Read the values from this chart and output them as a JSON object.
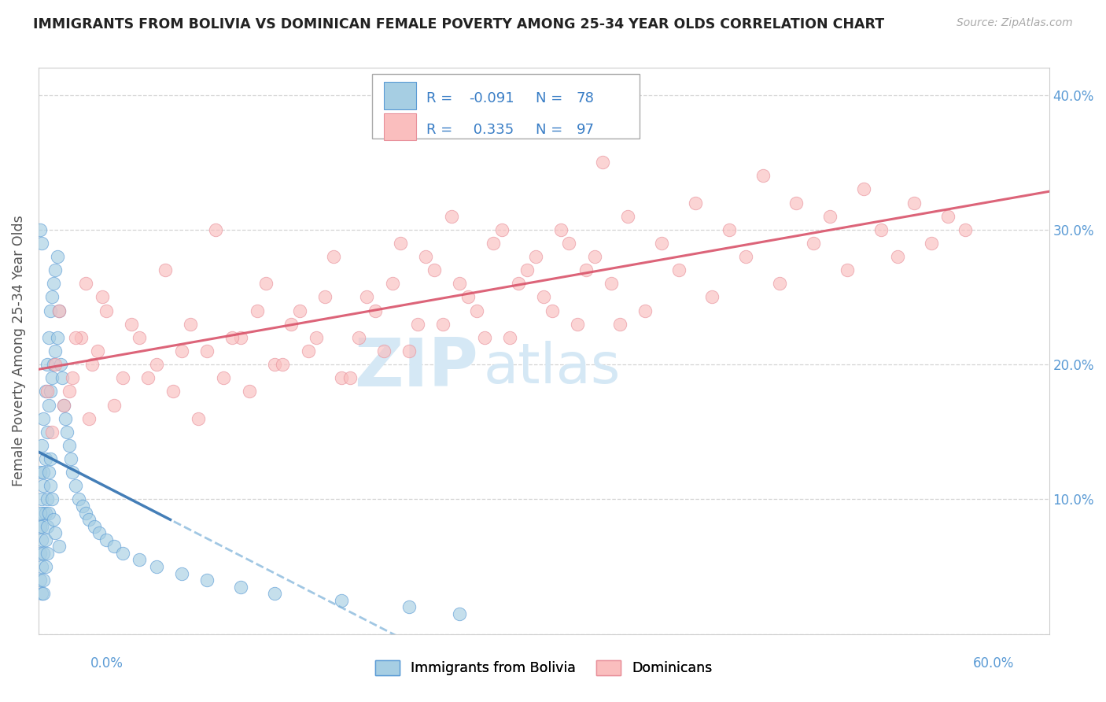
{
  "title": "IMMIGRANTS FROM BOLIVIA VS DOMINICAN FEMALE POVERTY AMONG 25-34 YEAR OLDS CORRELATION CHART",
  "source": "Source: ZipAtlas.com",
  "ylabel": "Female Poverty Among 25-34 Year Olds",
  "ytick_vals": [
    0.0,
    0.1,
    0.2,
    0.3,
    0.4
  ],
  "ytick_labels": [
    "",
    "10.0%",
    "20.0%",
    "30.0%",
    "40.0%"
  ],
  "xlim": [
    0.0,
    0.6
  ],
  "ylim": [
    0.0,
    0.42
  ],
  "r_bolivia": -0.091,
  "n_bolivia": 78,
  "r_dominican": 0.335,
  "n_dominican": 97,
  "color_blue_fill": "#a6cee3",
  "color_blue_edge": "#5b9bd5",
  "color_pink_fill": "#fabebe",
  "color_pink_edge": "#e8909a",
  "color_trend_blue_solid": "#3070b0",
  "color_trend_blue_dash": "#7ab0d8",
  "color_trend_pink": "#d9536a",
  "color_legend_text": "#3a7ec6",
  "color_legend_r_blue": "#3a7ec6",
  "color_legend_n_blue": "#3a7ec6",
  "watermark_color": "#d5e8f5",
  "background_color": "#ffffff",
  "grid_color": "#d0d0d0",
  "axis_label_color": "#5b9bd5",
  "ylabel_color": "#555555",
  "title_color": "#222222",
  "bolivia_x": [
    0.001,
    0.001,
    0.001,
    0.001,
    0.002,
    0.002,
    0.002,
    0.002,
    0.002,
    0.003,
    0.003,
    0.003,
    0.003,
    0.003,
    0.004,
    0.004,
    0.004,
    0.004,
    0.005,
    0.005,
    0.005,
    0.005,
    0.006,
    0.006,
    0.006,
    0.007,
    0.007,
    0.007,
    0.008,
    0.008,
    0.009,
    0.009,
    0.01,
    0.01,
    0.011,
    0.011,
    0.012,
    0.013,
    0.014,
    0.015,
    0.016,
    0.017,
    0.018,
    0.019,
    0.02,
    0.022,
    0.024,
    0.026,
    0.028,
    0.03,
    0.033,
    0.036,
    0.04,
    0.045,
    0.05,
    0.06,
    0.07,
    0.085,
    0.1,
    0.12,
    0.14,
    0.18,
    0.22,
    0.25,
    0.001,
    0.001,
    0.002,
    0.002,
    0.003,
    0.003,
    0.004,
    0.005,
    0.006,
    0.007,
    0.008,
    0.009,
    0.01,
    0.012
  ],
  "bolivia_y": [
    0.12,
    0.08,
    0.06,
    0.04,
    0.14,
    0.1,
    0.07,
    0.05,
    0.03,
    0.16,
    0.12,
    0.09,
    0.06,
    0.03,
    0.18,
    0.13,
    0.09,
    0.05,
    0.2,
    0.15,
    0.1,
    0.06,
    0.22,
    0.17,
    0.12,
    0.24,
    0.18,
    0.13,
    0.25,
    0.19,
    0.26,
    0.2,
    0.27,
    0.21,
    0.28,
    0.22,
    0.24,
    0.2,
    0.19,
    0.17,
    0.16,
    0.15,
    0.14,
    0.13,
    0.12,
    0.11,
    0.1,
    0.095,
    0.09,
    0.085,
    0.08,
    0.075,
    0.07,
    0.065,
    0.06,
    0.055,
    0.05,
    0.045,
    0.04,
    0.035,
    0.03,
    0.025,
    0.02,
    0.015,
    0.3,
    0.09,
    0.29,
    0.08,
    0.11,
    0.04,
    0.07,
    0.08,
    0.09,
    0.11,
    0.1,
    0.085,
    0.075,
    0.065
  ],
  "dominican_x": [
    0.005,
    0.01,
    0.015,
    0.02,
    0.025,
    0.03,
    0.035,
    0.04,
    0.05,
    0.06,
    0.07,
    0.08,
    0.09,
    0.1,
    0.11,
    0.12,
    0.13,
    0.14,
    0.15,
    0.16,
    0.17,
    0.18,
    0.19,
    0.2,
    0.21,
    0.22,
    0.23,
    0.24,
    0.25,
    0.26,
    0.27,
    0.28,
    0.29,
    0.3,
    0.31,
    0.32,
    0.33,
    0.34,
    0.35,
    0.36,
    0.37,
    0.38,
    0.39,
    0.4,
    0.41,
    0.42,
    0.43,
    0.44,
    0.45,
    0.46,
    0.47,
    0.48,
    0.49,
    0.5,
    0.51,
    0.52,
    0.53,
    0.54,
    0.55,
    0.008,
    0.012,
    0.018,
    0.022,
    0.028,
    0.032,
    0.038,
    0.045,
    0.055,
    0.065,
    0.075,
    0.085,
    0.095,
    0.105,
    0.115,
    0.125,
    0.135,
    0.145,
    0.155,
    0.165,
    0.175,
    0.185,
    0.195,
    0.205,
    0.215,
    0.225,
    0.235,
    0.245,
    0.255,
    0.265,
    0.275,
    0.285,
    0.295,
    0.305,
    0.315,
    0.325,
    0.335,
    0.345
  ],
  "dominican_y": [
    0.18,
    0.2,
    0.17,
    0.19,
    0.22,
    0.16,
    0.21,
    0.24,
    0.19,
    0.22,
    0.2,
    0.18,
    0.23,
    0.21,
    0.19,
    0.22,
    0.24,
    0.2,
    0.23,
    0.21,
    0.25,
    0.19,
    0.22,
    0.24,
    0.26,
    0.21,
    0.28,
    0.23,
    0.26,
    0.24,
    0.29,
    0.22,
    0.27,
    0.25,
    0.3,
    0.23,
    0.28,
    0.26,
    0.31,
    0.24,
    0.29,
    0.27,
    0.32,
    0.25,
    0.3,
    0.28,
    0.34,
    0.26,
    0.32,
    0.29,
    0.31,
    0.27,
    0.33,
    0.3,
    0.28,
    0.32,
    0.29,
    0.31,
    0.3,
    0.15,
    0.24,
    0.18,
    0.22,
    0.26,
    0.2,
    0.25,
    0.17,
    0.23,
    0.19,
    0.27,
    0.21,
    0.16,
    0.3,
    0.22,
    0.18,
    0.26,
    0.2,
    0.24,
    0.22,
    0.28,
    0.19,
    0.25,
    0.21,
    0.29,
    0.23,
    0.27,
    0.31,
    0.25,
    0.22,
    0.3,
    0.26,
    0.28,
    0.24,
    0.29,
    0.27,
    0.35,
    0.23
  ]
}
